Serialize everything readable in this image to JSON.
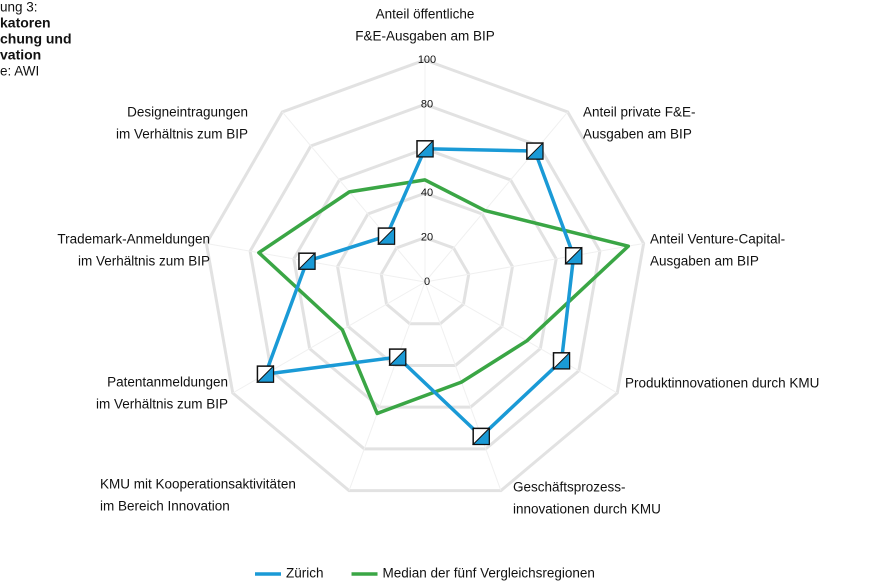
{
  "heading": [
    "ung 3:",
    "katoren",
    "chung und",
    "vation",
    "e: AWI"
  ],
  "chart_data": {
    "type": "radar",
    "categories": [
      [
        "Anteil öffentliche",
        "F&E-Ausgaben am BIP"
      ],
      [
        "Anteil private F&E-",
        "Ausgaben am BIP"
      ],
      [
        "Anteil Venture-Capital-",
        "Ausgaben am BIP"
      ],
      [
        "Produktinnovationen durch KMU"
      ],
      [
        "Geschäftsprozess-",
        "innovationen durch KMU"
      ],
      [
        "KMU mit Kooperationsaktivitäten",
        "im Bereich Innovation"
      ],
      [
        "Patentanmeldungen",
        "im Verhältnis zum BIP"
      ],
      [
        "Trademark-Anmeldungen",
        "im Verhältnis zum BIP"
      ],
      [
        "Designeintragungen",
        "im Verhältnis zum BIP"
      ]
    ],
    "series": [
      {
        "name": "Zürich",
        "color": "#1a9ad6",
        "values": [
          60,
          77,
          68,
          71,
          74,
          36,
          83,
          54,
          27
        ]
      },
      {
        "name": "Median der fünf Vergleichsregionen",
        "color": "#3aa645",
        "values": [
          46,
          42,
          93,
          53,
          48,
          63,
          43,
          76,
          53
        ]
      }
    ],
    "ylim": [
      0,
      100
    ],
    "yticks": [
      0,
      20,
      40,
      60,
      80,
      100
    ],
    "grid": true,
    "legend": "bottom"
  }
}
